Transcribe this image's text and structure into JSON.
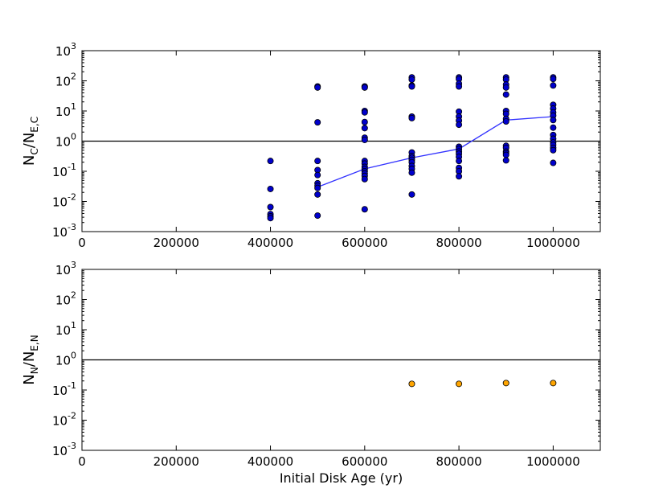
{
  "chart_data": [
    {
      "type": "scatter",
      "panel": "top",
      "ylabel_main": "N",
      "ylabel_main_sub": "C",
      "ylabel_sep": "/N",
      "ylabel_den_sub": "E,C",
      "xlim": [
        0,
        1100000
      ],
      "ylim": [
        0.001,
        1000
      ],
      "yscale": "log",
      "x_ticks": [
        0,
        200000,
        400000,
        600000,
        800000,
        1000000
      ],
      "x_tick_labels": [
        "0",
        "200000",
        "400000",
        "600000",
        "800000",
        "1000000"
      ],
      "y_ticks": [
        0.001,
        0.01,
        0.1,
        1,
        10,
        100,
        1000
      ],
      "y_tick_base": "10",
      "y_tick_exponents": [
        "-3",
        "-2",
        "-1",
        "0",
        "1",
        "2",
        "3"
      ],
      "reference_line_y": 1,
      "reference_line_color": "#000000",
      "marker_color": "#0000cc",
      "line_color": "#3333ff",
      "points": [
        {
          "x": 400000,
          "y": 0.22
        },
        {
          "x": 400000,
          "y": 0.026
        },
        {
          "x": 400000,
          "y": 0.0065
        },
        {
          "x": 400000,
          "y": 0.0038
        },
        {
          "x": 400000,
          "y": 0.0032
        },
        {
          "x": 400000,
          "y": 0.0028
        },
        {
          "x": 500000,
          "y": 65
        },
        {
          "x": 500000,
          "y": 60
        },
        {
          "x": 500000,
          "y": 4.2
        },
        {
          "x": 500000,
          "y": 0.22
        },
        {
          "x": 500000,
          "y": 0.11
        },
        {
          "x": 500000,
          "y": 0.075
        },
        {
          "x": 500000,
          "y": 0.04
        },
        {
          "x": 500000,
          "y": 0.033
        },
        {
          "x": 500000,
          "y": 0.028
        },
        {
          "x": 500000,
          "y": 0.017
        },
        {
          "x": 500000,
          "y": 0.0034
        },
        {
          "x": 600000,
          "y": 65
        },
        {
          "x": 600000,
          "y": 60
        },
        {
          "x": 600000,
          "y": 10
        },
        {
          "x": 600000,
          "y": 9
        },
        {
          "x": 600000,
          "y": 4.3
        },
        {
          "x": 600000,
          "y": 2.7
        },
        {
          "x": 600000,
          "y": 1.3
        },
        {
          "x": 600000,
          "y": 1.1
        },
        {
          "x": 600000,
          "y": 0.22
        },
        {
          "x": 600000,
          "y": 0.18
        },
        {
          "x": 600000,
          "y": 0.14
        },
        {
          "x": 600000,
          "y": 0.12
        },
        {
          "x": 600000,
          "y": 0.1
        },
        {
          "x": 600000,
          "y": 0.085
        },
        {
          "x": 600000,
          "y": 0.07
        },
        {
          "x": 600000,
          "y": 0.055
        },
        {
          "x": 600000,
          "y": 0.0055
        },
        {
          "x": 700000,
          "y": 130
        },
        {
          "x": 700000,
          "y": 110
        },
        {
          "x": 700000,
          "y": 70
        },
        {
          "x": 700000,
          "y": 65
        },
        {
          "x": 700000,
          "y": 6.5
        },
        {
          "x": 700000,
          "y": 5.8
        },
        {
          "x": 700000,
          "y": 0.42
        },
        {
          "x": 700000,
          "y": 0.32
        },
        {
          "x": 700000,
          "y": 0.28
        },
        {
          "x": 700000,
          "y": 0.24
        },
        {
          "x": 700000,
          "y": 0.2
        },
        {
          "x": 700000,
          "y": 0.15
        },
        {
          "x": 700000,
          "y": 0.12
        },
        {
          "x": 700000,
          "y": 0.09
        },
        {
          "x": 700000,
          "y": 0.017
        },
        {
          "x": 800000,
          "y": 130
        },
        {
          "x": 800000,
          "y": 115
        },
        {
          "x": 800000,
          "y": 80
        },
        {
          "x": 800000,
          "y": 65
        },
        {
          "x": 800000,
          "y": 9.5
        },
        {
          "x": 800000,
          "y": 6.5
        },
        {
          "x": 800000,
          "y": 4.8
        },
        {
          "x": 800000,
          "y": 3.5
        },
        {
          "x": 800000,
          "y": 0.65
        },
        {
          "x": 800000,
          "y": 0.55
        },
        {
          "x": 800000,
          "y": 0.45
        },
        {
          "x": 800000,
          "y": 0.38
        },
        {
          "x": 800000,
          "y": 0.3
        },
        {
          "x": 800000,
          "y": 0.22
        },
        {
          "x": 800000,
          "y": 0.13
        },
        {
          "x": 800000,
          "y": 0.1
        },
        {
          "x": 800000,
          "y": 0.068
        },
        {
          "x": 900000,
          "y": 130
        },
        {
          "x": 900000,
          "y": 110
        },
        {
          "x": 900000,
          "y": 75
        },
        {
          "x": 900000,
          "y": 60
        },
        {
          "x": 900000,
          "y": 35
        },
        {
          "x": 900000,
          "y": 10
        },
        {
          "x": 900000,
          "y": 8
        },
        {
          "x": 900000,
          "y": 5.5
        },
        {
          "x": 900000,
          "y": 4.5
        },
        {
          "x": 900000,
          "y": 0.7
        },
        {
          "x": 900000,
          "y": 0.6
        },
        {
          "x": 900000,
          "y": 0.45
        },
        {
          "x": 900000,
          "y": 0.4
        },
        {
          "x": 900000,
          "y": 0.35
        },
        {
          "x": 900000,
          "y": 0.23
        },
        {
          "x": 1000000,
          "y": 130
        },
        {
          "x": 1000000,
          "y": 115
        },
        {
          "x": 1000000,
          "y": 70
        },
        {
          "x": 1000000,
          "y": 16
        },
        {
          "x": 1000000,
          "y": 12
        },
        {
          "x": 1000000,
          "y": 9
        },
        {
          "x": 1000000,
          "y": 7
        },
        {
          "x": 1000000,
          "y": 5
        },
        {
          "x": 1000000,
          "y": 2.8
        },
        {
          "x": 1000000,
          "y": 1.6
        },
        {
          "x": 1000000,
          "y": 1.2
        },
        {
          "x": 1000000,
          "y": 0.9
        },
        {
          "x": 1000000,
          "y": 0.75
        },
        {
          "x": 1000000,
          "y": 0.6
        },
        {
          "x": 1000000,
          "y": 0.5
        },
        {
          "x": 1000000,
          "y": 0.19
        }
      ],
      "line": {
        "x": [
          500000,
          600000,
          700000,
          800000,
          900000,
          1000000
        ],
        "y": [
          0.03,
          0.12,
          0.28,
          0.55,
          5.0,
          6.5
        ]
      }
    },
    {
      "type": "scatter",
      "panel": "bottom",
      "xlabel": "Initial Disk Age (yr)",
      "ylabel_main": "N",
      "ylabel_main_sub": "N",
      "ylabel_sep": "/N",
      "ylabel_den_sub": "E,N",
      "xlim": [
        0,
        1100000
      ],
      "ylim": [
        0.001,
        1000
      ],
      "yscale": "log",
      "x_ticks": [
        0,
        200000,
        400000,
        600000,
        800000,
        1000000
      ],
      "x_tick_labels": [
        "0",
        "200000",
        "400000",
        "600000",
        "800000",
        "1000000"
      ],
      "y_ticks": [
        0.001,
        0.01,
        0.1,
        1,
        10,
        100,
        1000
      ],
      "y_tick_base": "10",
      "y_tick_exponents": [
        "-3",
        "-2",
        "-1",
        "0",
        "1",
        "2",
        "3"
      ],
      "reference_line_y": 1,
      "reference_line_color": "#000000",
      "marker_color": "#ffa500",
      "points": [
        {
          "x": 700000,
          "y": 0.16
        },
        {
          "x": 800000,
          "y": 0.16
        },
        {
          "x": 900000,
          "y": 0.17
        },
        {
          "x": 1000000,
          "y": 0.17
        }
      ]
    }
  ]
}
